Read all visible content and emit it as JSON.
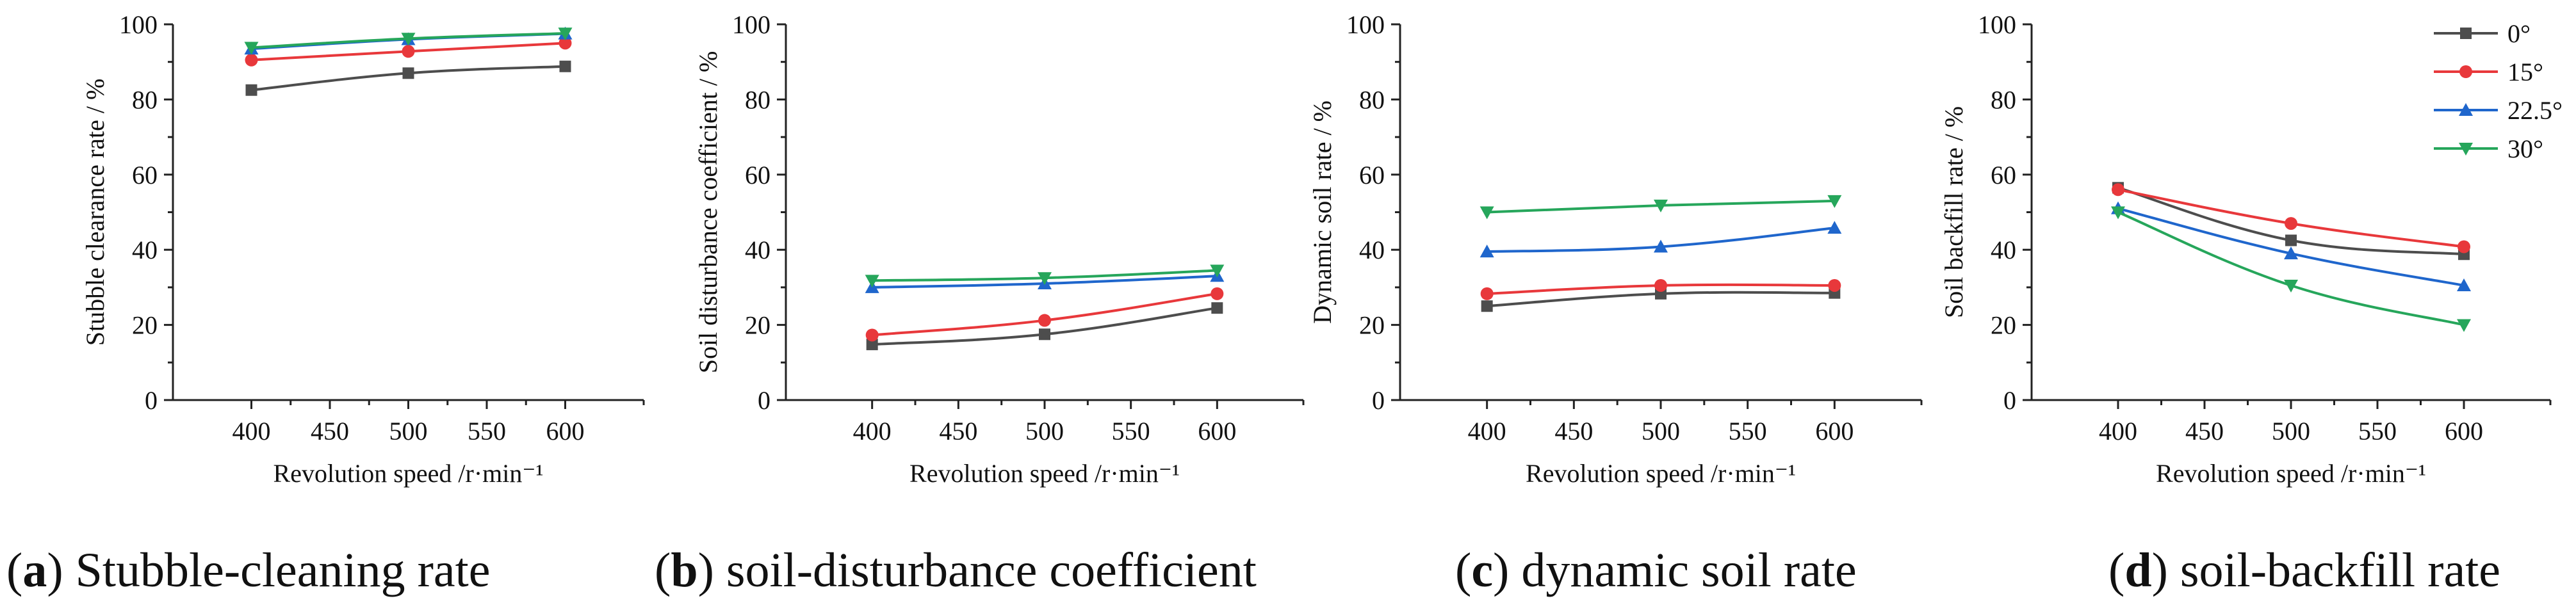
{
  "figure": {
    "captions": [
      {
        "letter": "a",
        "text": "Stubble-cleaning rate"
      },
      {
        "letter": "b",
        "text": "soil-disturbance coefficient"
      },
      {
        "letter": "c",
        "text": "dynamic soil rate"
      },
      {
        "letter": "d",
        "text": "soil-backfill rate"
      }
    ]
  },
  "chart_data": [
    {
      "type": "line",
      "xlabel": "Revolution speed /r·min⁻¹",
      "ylabel": "Stubble clearance rate / %",
      "x": [
        400,
        500,
        600
      ],
      "xlim": [
        350,
        650
      ],
      "xticks": [
        400,
        450,
        500,
        550,
        600
      ],
      "ylim": [
        0,
        100
      ],
      "yticks": [
        0,
        20,
        40,
        60,
        80,
        100
      ],
      "series": [
        {
          "name": "0°",
          "values": [
            82.5,
            87.0,
            88.8
          ]
        },
        {
          "name": "15°",
          "values": [
            90.5,
            92.8,
            95.0
          ]
        },
        {
          "name": "22.5°",
          "values": [
            93.5,
            96.0,
            97.5
          ]
        },
        {
          "name": "30°",
          "values": [
            93.8,
            96.2,
            97.6
          ]
        }
      ]
    },
    {
      "type": "line",
      "xlabel": "Revolution speed /r·min⁻¹",
      "ylabel": "Soil disturbance coefficient / %",
      "x": [
        400,
        500,
        600
      ],
      "xlim": [
        350,
        650
      ],
      "xticks": [
        400,
        450,
        500,
        550,
        600
      ],
      "ylim": [
        0,
        100
      ],
      "yticks": [
        0,
        20,
        40,
        60,
        80,
        100
      ],
      "series": [
        {
          "name": "0°",
          "values": [
            14.8,
            17.5,
            24.5
          ]
        },
        {
          "name": "15°",
          "values": [
            17.3,
            21.2,
            28.3
          ]
        },
        {
          "name": "22.5°",
          "values": [
            30.0,
            31.0,
            33.0
          ]
        },
        {
          "name": "30°",
          "values": [
            31.8,
            32.5,
            34.5
          ]
        }
      ]
    },
    {
      "type": "line",
      "xlabel": "Revolution speed /r·min⁻¹",
      "ylabel": "Dynamic soil rate / %",
      "x": [
        400,
        500,
        600
      ],
      "xlim": [
        350,
        650
      ],
      "xticks": [
        400,
        450,
        500,
        550,
        600
      ],
      "ylim": [
        0,
        100
      ],
      "yticks": [
        0,
        20,
        40,
        60,
        80,
        100
      ],
      "series": [
        {
          "name": "0°",
          "values": [
            25.0,
            28.3,
            28.5
          ]
        },
        {
          "name": "15°",
          "values": [
            28.3,
            30.5,
            30.5
          ]
        },
        {
          "name": "22.5°",
          "values": [
            39.5,
            40.8,
            45.8
          ]
        },
        {
          "name": "30°",
          "values": [
            50.0,
            51.8,
            53.0
          ]
        }
      ]
    },
    {
      "type": "line",
      "xlabel": "Revolution speed /r·min⁻¹",
      "ylabel": "Soil backfill rate / %",
      "x": [
        400,
        500,
        600
      ],
      "xlim": [
        350,
        650
      ],
      "xticks": [
        400,
        450,
        500,
        550,
        600
      ],
      "ylim": [
        0,
        100
      ],
      "yticks": [
        0,
        20,
        40,
        60,
        80,
        100
      ],
      "legend": "top-right",
      "series": [
        {
          "name": "0°",
          "values": [
            56.5,
            42.5,
            38.8
          ]
        },
        {
          "name": "15°",
          "values": [
            56.0,
            47.0,
            40.8
          ]
        },
        {
          "name": "22.5°",
          "values": [
            51.0,
            39.0,
            30.5
          ]
        },
        {
          "name": "30°",
          "values": [
            50.0,
            30.5,
            20.0
          ]
        }
      ]
    }
  ],
  "styles": {
    "series_colors": [
      "#4d4d4d",
      "#e8383b",
      "#1f66cc",
      "#26a65b"
    ],
    "series_markers": [
      "square",
      "circle",
      "triangle-up",
      "triangle-down"
    ],
    "axis_color": "#222222"
  }
}
